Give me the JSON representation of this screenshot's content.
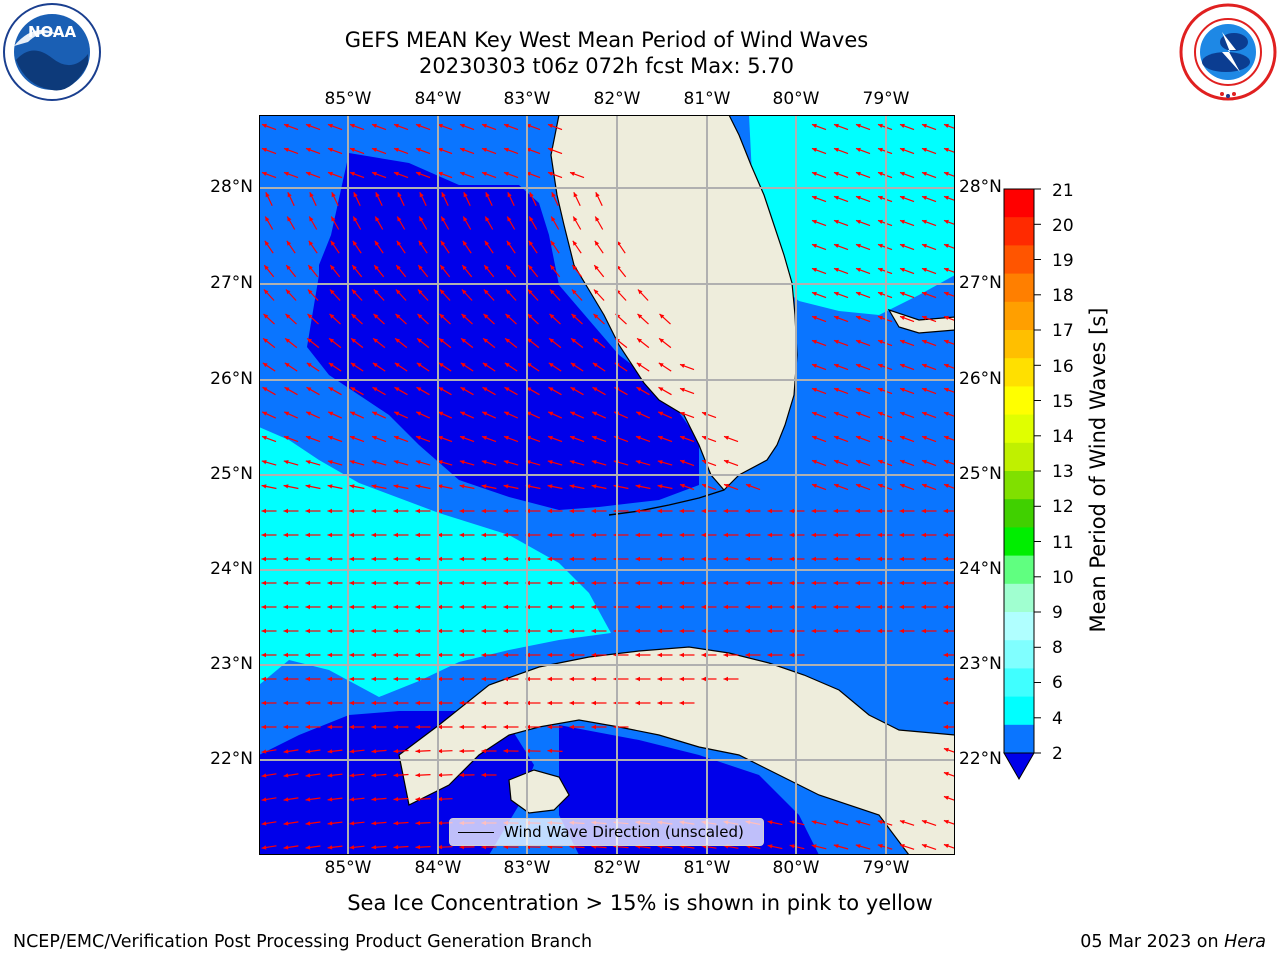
{
  "title": {
    "line1": "GEFS MEAN Key West Mean Period of Wind Waves",
    "line2": "20230303 t06z 072h fcst   Max: 5.70"
  },
  "logos": {
    "left": {
      "name": "NOAA",
      "text": "NOAA",
      "ring_text": "NATIONAL OCEANIC AND ATMOSPHERIC ADMINISTRATION · U.S. DEPARTMENT OF COMMERCE"
    },
    "right": {
      "name": "National Weather Service",
      "ring_text": "NATIONAL WEATHER SERVICE"
    }
  },
  "map": {
    "longitude_labels": [
      "85°W",
      "84°W",
      "83°W",
      "82°W",
      "81°W",
      "80°W",
      "79°W"
    ],
    "latitude_labels": [
      "28°N",
      "27°N",
      "26°N",
      "25°N",
      "24°N",
      "23°N",
      "22°N"
    ],
    "legend_label": "Wind Wave Direction (unscaled)",
    "colors": {
      "band_2_4": "#0a75ff",
      "band_4_6": "#00ffff",
      "below_2": "#0000ea",
      "land": "#eeeddc",
      "arrows": "#ff0000",
      "gridlines": "#b0b0b0"
    }
  },
  "colorbar": {
    "title": "Mean Period of Wind Waves [s]",
    "ticks": [
      21,
      20,
      19,
      18,
      17,
      16,
      15,
      14,
      13,
      12,
      11,
      10,
      9,
      8,
      6,
      4,
      2
    ],
    "colors_top_to_bottom": [
      "#ff0000",
      "#ff2a00",
      "#ff5500",
      "#ff7f00",
      "#ff9f00",
      "#ffbf00",
      "#ffe000",
      "#ffff00",
      "#e0ff00",
      "#c0f000",
      "#80e000",
      "#40d000",
      "#00ee00",
      "#60ff80",
      "#a0ffd0",
      "#b0ffff",
      "#80ffff",
      "#40ffff",
      "#00ffff",
      "#0a75ff"
    ],
    "extend_color": "#0000ea"
  },
  "caption": "Sea Ice Concentration > 15% is shown in pink to yellow",
  "footer": {
    "left": "NCEP/EMC/Verification Post Processing Product Generation Branch",
    "date": "05 Mar 2023 on ",
    "machine": "Hera"
  }
}
